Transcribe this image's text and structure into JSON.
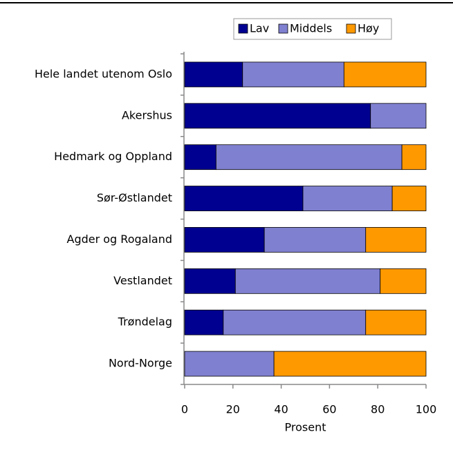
{
  "chart_data": {
    "type": "stacked-barh",
    "categories": [
      "Hele landet utenom Oslo",
      "Akershus",
      "Hedmark og Oppland",
      "Sør-Østlandet",
      "Agder og Rogaland",
      "Vestlandet",
      "Trøndelag",
      "Nord-Norge"
    ],
    "series": [
      {
        "name": "Lav",
        "color": "#000090",
        "values": [
          24,
          77,
          13,
          49,
          33,
          21,
          16,
          0
        ]
      },
      {
        "name": "Middels",
        "color": "#8080d0",
        "values": [
          42,
          23,
          77,
          37,
          42,
          60,
          59,
          37
        ]
      },
      {
        "name": "Høy",
        "color": "#ff9900",
        "values": [
          34,
          0,
          10,
          14,
          25,
          19,
          25,
          63
        ]
      }
    ],
    "xlabel": "Prosent",
    "xlim": [
      0,
      100
    ],
    "xticks": [
      0,
      20,
      40,
      60,
      80,
      100
    ],
    "legend": "top"
  }
}
